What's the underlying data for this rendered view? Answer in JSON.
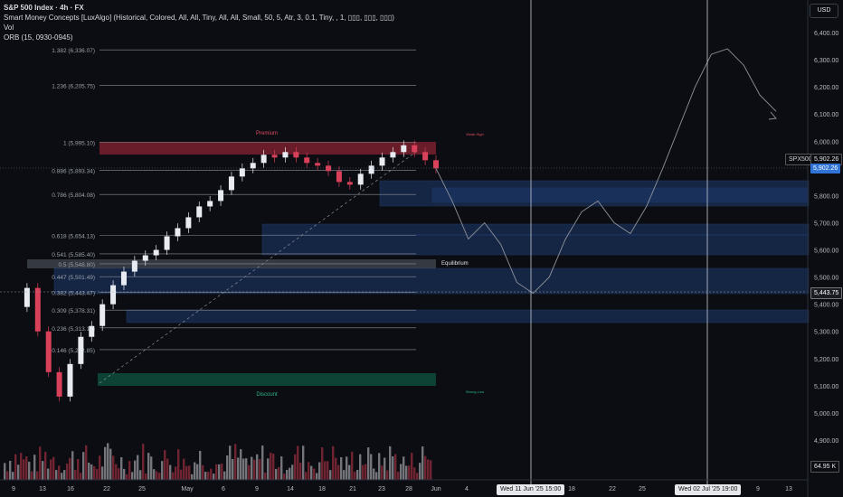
{
  "header": {
    "title": "S&P 500 Index · 4h · FX",
    "indicator1": "Smart Money Concepts [LuxAlgo] (Historical, Colored, All, All, Tiny, All, All, Small, 50, 5, Atr, 3, 0.1, Tiny, , 1, ▯▯▯, ▯▯▯, ▯▯▯)",
    "indicator2": "Vol",
    "indicator3": "ORB (15, 0930-0945)"
  },
  "currency_button": "USD",
  "price_axis": [
    "6,400.00",
    "6,300.00",
    "6,200.00",
    "6,100.00",
    "6,000.00",
    "5,900.00",
    "5,800.00",
    "5,700.00",
    "5,600.00",
    "5,500.00",
    "5,400.00",
    "5,300.00",
    "5,200.00",
    "5,100.00",
    "5,000.00",
    "4,900.00"
  ],
  "time_axis": [
    "9",
    "13",
    "16",
    "22",
    "25",
    "May",
    "6",
    "9",
    "14",
    "18",
    "21",
    "23",
    "28",
    "Jun",
    "4",
    "18",
    "22",
    "25",
    "9",
    "13"
  ],
  "fib_levels": [
    {
      "label": "1.382 (6,336.07)",
      "price": 6336.07
    },
    {
      "label": "1.236 (6,205.75)",
      "price": 6205.75
    },
    {
      "label": "1 (5,995.10)",
      "price": 5995.1
    },
    {
      "label": "0.886 (5,893.34)",
      "price": 5893.34
    },
    {
      "label": "0.786 (5,804.08)",
      "price": 5804.08
    },
    {
      "label": "0.618 (5,654.13)",
      "price": 5654.13
    },
    {
      "label": "0.541 (5,585.40)",
      "price": 5585.4
    },
    {
      "label": "0.5 (5,548.80)",
      "price": 5548.8
    },
    {
      "label": "0.447 (5,501.49)",
      "price": 5501.49
    },
    {
      "label": "0.382 (5,443.47)",
      "price": 5443.47
    },
    {
      "label": "0.309 (5,378.31)",
      "price": 5378.31
    },
    {
      "label": "0.236 (5,313.15)",
      "price": 5313.15
    },
    {
      "label": "0.146 (5,232.85)",
      "price": 5232.85
    }
  ],
  "zones": {
    "premium": "Premium",
    "equilibrium": "Equilibrium",
    "discount": "Discount",
    "strong_high": "Weak High",
    "strong_low": "Strong Low"
  },
  "price_tags": {
    "symbol": "SPX500",
    "last": "5,902.26",
    "last2": "5,902.26",
    "crosshair": "5,443.75",
    "volume": "64.95 K"
  },
  "date_tags": [
    "Wed 11 Jun '25  15:00",
    "Wed 02 Jul '25  19:00"
  ],
  "colors": {
    "bg": "#0b0d12",
    "premium": "#8a2231",
    "discount": "#0d4d3c",
    "blue_zone": "#1e3a6e",
    "up": "#e8ecf2",
    "down": "#d9405a",
    "projection": "#8f939b",
    "price_tag": "#2f74d6"
  },
  "chart_data": {
    "type": "line",
    "ylim": [
      4850,
      6450
    ],
    "price_series": [
      5390,
      5460,
      5300,
      5150,
      5060,
      5180,
      5280,
      5320,
      5400,
      5470,
      5520,
      5560,
      5580,
      5600,
      5650,
      5680,
      5720,
      5760,
      5780,
      5820,
      5870,
      5900,
      5920,
      5950,
      5940,
      5960,
      5940,
      5920,
      5910,
      5890,
      5850,
      5840,
      5880,
      5910,
      5940,
      5960,
      5985,
      5960,
      5930,
      5900
    ],
    "projection": [
      5900,
      5780,
      5640,
      5700,
      5620,
      5480,
      5440,
      5500,
      5640,
      5740,
      5780,
      5700,
      5660,
      5760,
      5900,
      6050,
      6200,
      6320,
      6340,
      6280,
      6170,
      6110
    ]
  }
}
